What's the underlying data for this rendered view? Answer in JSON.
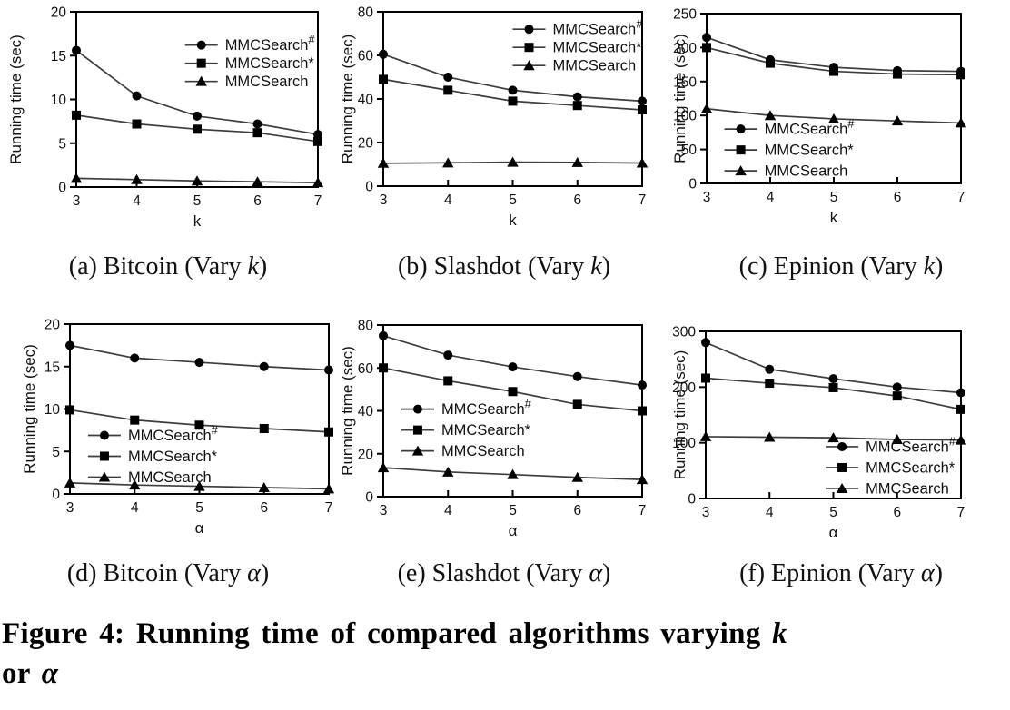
{
  "figure": {
    "captions_row1": [
      {
        "prefix": "(a) Bitcoin (Vary ",
        "variable": "k",
        "suffix": ")"
      },
      {
        "prefix": "(b) Slashdot (Vary ",
        "variable": "k",
        "suffix": ")"
      },
      {
        "prefix": "(c) Epinion (Vary ",
        "variable": "k",
        "suffix": ")"
      }
    ],
    "captions_row2": [
      {
        "prefix": "(d) Bitcoin (Vary ",
        "variable": "α",
        "suffix": ")"
      },
      {
        "prefix": "(e) Slashdot (Vary ",
        "variable": "α",
        "suffix": ")"
      },
      {
        "prefix": "(f) Epinion (Vary ",
        "variable": "α",
        "suffix": ")"
      }
    ],
    "main_caption": {
      "line1_text": "Figure 4: Running time of compared algorithms varying ",
      "line1_var": "k",
      "line2_text": "or ",
      "line2_var": "α"
    },
    "ink_color": "#000000",
    "line_color": "#3d3d3d"
  },
  "chart_data": [
    {
      "id": "bitcoin-vary-k",
      "type": "line",
      "title": "Bitcoin (Vary k)",
      "xlabel": "k",
      "ylabel": "Running time (sec)",
      "x": [
        3,
        4,
        5,
        6,
        7
      ],
      "xlim": [
        3,
        7
      ],
      "ylim": [
        0,
        20
      ],
      "yticks": [
        0,
        5,
        10,
        15,
        20
      ],
      "grid": false,
      "legend_position": "top-right",
      "legend": {
        "fx": 0.45,
        "fy": 0.19
      },
      "series": [
        {
          "name": "MMCSearch#",
          "marker": "circle",
          "values": [
            15.6,
            10.4,
            8.1,
            7.2,
            6.0
          ]
        },
        {
          "name": "MMCSearch*",
          "marker": "square",
          "values": [
            8.2,
            7.2,
            6.6,
            6.2,
            5.2
          ]
        },
        {
          "name": "MMCSearch",
          "marker": "triangle",
          "values": [
            1.0,
            0.85,
            0.7,
            0.6,
            0.5
          ]
        }
      ]
    },
    {
      "id": "slashdot-vary-k",
      "type": "line",
      "title": "Slashdot (Vary k)",
      "xlabel": "k",
      "ylabel": "Running time (sec)",
      "x": [
        3,
        4,
        5,
        6,
        7
      ],
      "xlim": [
        3,
        7
      ],
      "ylim": [
        0,
        80
      ],
      "yticks": [
        0,
        20,
        40,
        60,
        80
      ],
      "grid": false,
      "legend_position": "top-right",
      "legend": {
        "fx": 0.5,
        "fy": 0.1
      },
      "series": [
        {
          "name": "MMCSearch#",
          "marker": "circle",
          "values": [
            60.5,
            50,
            44,
            41,
            39
          ]
        },
        {
          "name": "MMCSearch*",
          "marker": "square",
          "values": [
            49,
            44,
            39,
            37,
            35
          ]
        },
        {
          "name": "MMCSearch",
          "marker": "triangle",
          "values": [
            10.5,
            10.7,
            11,
            10.9,
            10.6
          ]
        }
      ]
    },
    {
      "id": "epinion-vary-k",
      "type": "line",
      "title": "Epinion (Vary k)",
      "xlabel": "k",
      "ylabel": "Running time (sec)",
      "x": [
        3,
        4,
        5,
        6,
        7
      ],
      "xlim": [
        3,
        7
      ],
      "ylim": [
        0,
        250
      ],
      "yticks": [
        0,
        50,
        100,
        150,
        200,
        250
      ],
      "grid": false,
      "legend_position": "mid-left",
      "legend": {
        "fx": 0.07,
        "fy": 0.68
      },
      "series": [
        {
          "name": "MMCSearch#",
          "marker": "circle",
          "values": [
            215,
            182,
            171,
            166,
            165
          ]
        },
        {
          "name": "MMCSearch*",
          "marker": "square",
          "values": [
            200,
            177,
            165,
            161,
            160
          ]
        },
        {
          "name": "MMCSearch",
          "marker": "triangle",
          "values": [
            110,
            100,
            95,
            92,
            89
          ]
        }
      ]
    },
    {
      "id": "bitcoin-vary-alpha",
      "type": "line",
      "title": "Bitcoin (Vary α)",
      "xlabel": "α",
      "ylabel": "Running time (sec)",
      "x": [
        3,
        4,
        5,
        6,
        7
      ],
      "xlim": [
        3,
        7
      ],
      "ylim": [
        0,
        20
      ],
      "yticks": [
        0,
        5,
        10,
        15,
        20
      ],
      "grid": false,
      "legend_position": "mid-left",
      "legend": {
        "fx": 0.07,
        "fy": 0.655
      },
      "series": [
        {
          "name": "MMCSearch#",
          "marker": "circle",
          "values": [
            17.5,
            16.0,
            15.5,
            15.0,
            14.6
          ]
        },
        {
          "name": "MMCSearch*",
          "marker": "square",
          "values": [
            9.9,
            8.7,
            8.1,
            7.7,
            7.3
          ]
        },
        {
          "name": "MMCSearch",
          "marker": "triangle",
          "values": [
            1.3,
            1.05,
            0.9,
            0.75,
            0.6
          ]
        }
      ]
    },
    {
      "id": "slashdot-vary-alpha",
      "type": "line",
      "title": "Slashdot (Vary α)",
      "xlabel": "α",
      "ylabel": "Running time (sec)",
      "x": [
        3,
        4,
        5,
        6,
        7
      ],
      "xlim": [
        3,
        7
      ],
      "ylim": [
        0,
        80
      ],
      "yticks": [
        0,
        20,
        40,
        60,
        80
      ],
      "grid": false,
      "legend_position": "mid-left",
      "legend": {
        "fx": 0.07,
        "fy": 0.49
      },
      "series": [
        {
          "name": "MMCSearch#",
          "marker": "circle",
          "values": [
            75,
            66,
            60.5,
            56,
            52
          ]
        },
        {
          "name": "MMCSearch*",
          "marker": "square",
          "values": [
            60,
            54,
            49,
            43,
            40
          ]
        },
        {
          "name": "MMCSearch",
          "marker": "triangle",
          "values": [
            13.5,
            11.5,
            10.3,
            9,
            8
          ]
        }
      ]
    },
    {
      "id": "epinion-vary-alpha",
      "type": "line",
      "title": "Epinion (Vary α)",
      "xlabel": "α",
      "ylabel": "Running time (sec)",
      "x": [
        3,
        4,
        5,
        6,
        7
      ],
      "xlim": [
        3,
        7
      ],
      "ylim": [
        0,
        300
      ],
      "yticks": [
        0,
        100,
        200,
        300
      ],
      "grid": false,
      "legend_position": "bottom-right",
      "legend": {
        "fx": 0.47,
        "fy": 0.69
      },
      "series": [
        {
          "name": "MMCSearch#",
          "marker": "circle",
          "values": [
            280,
            232,
            215,
            200,
            190
          ]
        },
        {
          "name": "MMCSearch*",
          "marker": "square",
          "values": [
            216,
            207,
            199,
            184,
            160
          ]
        },
        {
          "name": "MMCSearch",
          "marker": "triangle",
          "values": [
            111,
            110,
            109,
            106,
            105
          ]
        }
      ]
    }
  ]
}
